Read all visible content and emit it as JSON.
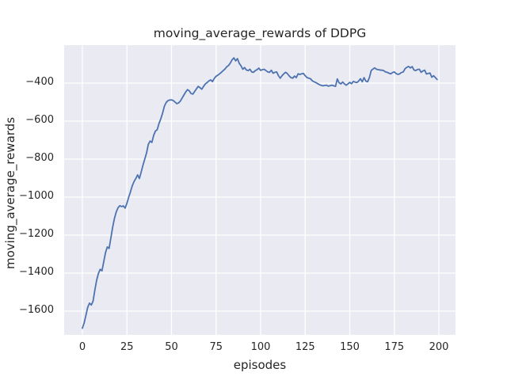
{
  "colors": {
    "figure_background": "#ffffff",
    "axes_background": "#eaeaf2",
    "grid_color": "#ffffff",
    "line_color": "#4c72b0",
    "text_color": "#262626"
  },
  "chart_data": {
    "type": "line",
    "title": "moving_average_rewards of DDPG",
    "xlabel": "episodes",
    "ylabel": "moving_average_rewards",
    "grid": true,
    "legend": null,
    "x_ticks": [
      0,
      25,
      50,
      75,
      100,
      125,
      150,
      175,
      200
    ],
    "x_tick_labels": [
      "0",
      "25",
      "50",
      "75",
      "100",
      "125",
      "150",
      "175",
      "200"
    ],
    "y_ticks": [
      -400,
      -600,
      -800,
      -1000,
      -1200,
      -1400,
      -1600
    ],
    "y_tick_labels": [
      "−400",
      "−600",
      "−800",
      "−1000",
      "−1200",
      "−1400",
      "−1600"
    ],
    "xlim": [
      -10.2,
      209.3
    ],
    "ylim": [
      -1725,
      -200
    ],
    "series": [
      {
        "name": "DDPG",
        "color": "#4c72b0",
        "x_start": 0,
        "x_step": 1,
        "values": [
          -1690,
          -1662,
          -1622,
          -1580,
          -1558,
          -1568,
          -1548,
          -1490,
          -1438,
          -1402,
          -1380,
          -1388,
          -1340,
          -1292,
          -1262,
          -1270,
          -1215,
          -1158,
          -1112,
          -1078,
          -1056,
          -1045,
          -1050,
          -1046,
          -1058,
          -1032,
          -1000,
          -972,
          -940,
          -918,
          -902,
          -883,
          -902,
          -868,
          -832,
          -800,
          -768,
          -722,
          -705,
          -712,
          -675,
          -652,
          -645,
          -612,
          -588,
          -558,
          -522,
          -502,
          -492,
          -489,
          -488,
          -492,
          -500,
          -508,
          -504,
          -494,
          -478,
          -462,
          -446,
          -434,
          -441,
          -455,
          -458,
          -444,
          -430,
          -417,
          -424,
          -432,
          -417,
          -404,
          -397,
          -388,
          -383,
          -392,
          -375,
          -364,
          -358,
          -351,
          -343,
          -334,
          -326,
          -314,
          -307,
          -294,
          -277,
          -267,
          -283,
          -271,
          -296,
          -309,
          -327,
          -318,
          -331,
          -334,
          -327,
          -341,
          -343,
          -334,
          -329,
          -321,
          -333,
          -329,
          -327,
          -334,
          -341,
          -343,
          -332,
          -348,
          -343,
          -341,
          -361,
          -374,
          -361,
          -351,
          -343,
          -350,
          -362,
          -371,
          -374,
          -363,
          -371,
          -351,
          -354,
          -351,
          -349,
          -361,
          -371,
          -374,
          -377,
          -388,
          -393,
          -397,
          -403,
          -408,
          -412,
          -414,
          -412,
          -411,
          -416,
          -413,
          -411,
          -414,
          -417,
          -378,
          -398,
          -404,
          -394,
          -404,
          -411,
          -404,
          -396,
          -403,
          -391,
          -395,
          -397,
          -389,
          -377,
          -393,
          -371,
          -389,
          -393,
          -371,
          -334,
          -326,
          -320,
          -327,
          -329,
          -331,
          -332,
          -334,
          -341,
          -343,
          -348,
          -351,
          -344,
          -341,
          -350,
          -354,
          -351,
          -344,
          -341,
          -324,
          -317,
          -312,
          -320,
          -313,
          -331,
          -334,
          -328,
          -327,
          -343,
          -336,
          -332,
          -352,
          -349,
          -347,
          -369,
          -361,
          -371,
          -381
        ]
      }
    ]
  }
}
